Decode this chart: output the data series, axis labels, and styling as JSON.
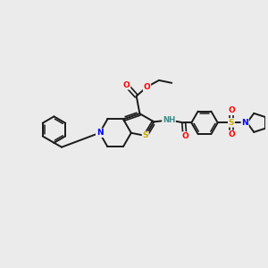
{
  "background_color": "#ebebeb",
  "bond_color": "#1a1a1a",
  "atom_colors": {
    "O": "#ff0000",
    "N": "#0000ff",
    "S": "#ccaa00",
    "H": "#3d8b8b",
    "C": "#1a1a1a"
  },
  "figsize": [
    3.0,
    3.0
  ],
  "dpi": 100
}
